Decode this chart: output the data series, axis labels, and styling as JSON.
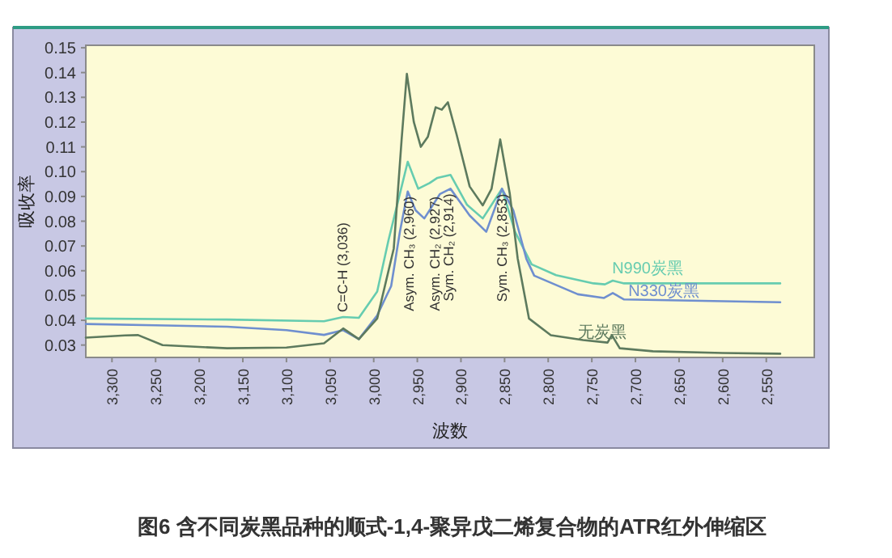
{
  "chart_data": {
    "type": "line",
    "title": "图6  含不同炭黑品种的顺式-1,4-聚异戊二烯复合物的ATR红外伸缩区",
    "xlabel": "波数",
    "ylabel": "吸收率",
    "xlim": [
      3330,
      2495
    ],
    "ylim": [
      0.025,
      0.151
    ],
    "xticks": [
      {
        "value": 3300,
        "label": "3,300"
      },
      {
        "value": 3250,
        "label": "3,250"
      },
      {
        "value": 3200,
        "label": "3,200"
      },
      {
        "value": 3150,
        "label": "3,150"
      },
      {
        "value": 3100,
        "label": "3,100"
      },
      {
        "value": 3050,
        "label": "3,050"
      },
      {
        "value": 3000,
        "label": "3,000"
      },
      {
        "value": 2950,
        "label": "2,950"
      },
      {
        "value": 2900,
        "label": "2,900"
      },
      {
        "value": 2850,
        "label": "2,850"
      },
      {
        "value": 2800,
        "label": "2,800"
      },
      {
        "value": 2750,
        "label": "2,750"
      },
      {
        "value": 2700,
        "label": "2,700"
      },
      {
        "value": 2650,
        "label": "2,650"
      },
      {
        "value": 2600,
        "label": "2,600"
      },
      {
        "value": 2550,
        "label": "2,550"
      }
    ],
    "yticks": [
      0.03,
      0.04,
      0.05,
      0.06,
      0.07,
      0.08,
      0.09,
      {
        "value": 0.1,
        "label": "0.10"
      },
      0.11,
      0.12,
      0.13,
      0.14,
      0.15
    ],
    "grid": false,
    "marker": "none",
    "line_style": "solid",
    "series": [
      {
        "name": "N990炭黑",
        "color": "#66ccb0",
        "x": [
          3330,
          3168,
          3057,
          3035,
          3017,
          2996,
          2983,
          2961,
          2949,
          2936,
          2927,
          2912,
          2893,
          2875,
          2853,
          2838,
          2819,
          2791,
          2748,
          2735,
          2726,
          2713,
          2534
        ],
        "values": [
          0.0407,
          0.0403,
          0.0396,
          0.0413,
          0.041,
          0.0516,
          0.0724,
          0.104,
          0.0931,
          0.0954,
          0.0975,
          0.0987,
          0.0866,
          0.0811,
          0.0931,
          0.0757,
          0.0626,
          0.0582,
          0.0549,
          0.0545,
          0.056,
          0.0549,
          0.0549
        ]
      },
      {
        "name": "N330炭黑",
        "color": "#6f8fcf",
        "x": [
          3330,
          3250,
          3168,
          3100,
          3057,
          3035,
          3017,
          2996,
          2986,
          2980,
          2970,
          2961,
          2952,
          2942,
          2924,
          2912,
          2890,
          2871,
          2853,
          2840,
          2825,
          2816,
          2766,
          2736,
          2726,
          2713,
          2534
        ],
        "values": [
          0.0385,
          0.038,
          0.0374,
          0.036,
          0.0341,
          0.036,
          0.0324,
          0.042,
          0.0494,
          0.0538,
          0.0757,
          0.092,
          0.0844,
          0.0811,
          0.091,
          0.0931,
          0.0823,
          0.0757,
          0.0931,
          0.0844,
          0.0648,
          0.058,
          0.0505,
          0.049,
          0.051,
          0.0484,
          0.0473
        ]
      },
      {
        "name": "无炭黑",
        "color": "#5d7a5e",
        "x": [
          3330,
          3285,
          3270,
          3242,
          3168,
          3100,
          3057,
          3035,
          3017,
          2996,
          2977,
          2968,
          2962,
          2954,
          2946,
          2938,
          2929,
          2922,
          2915,
          2905,
          2890,
          2875,
          2865,
          2855,
          2844,
          2835,
          2822,
          2797,
          2760,
          2732,
          2727,
          2718,
          2680,
          2600,
          2534
        ],
        "values": [
          0.033,
          0.0339,
          0.034,
          0.03,
          0.0287,
          0.029,
          0.0307,
          0.0367,
          0.0324,
          0.0407,
          0.069,
          0.113,
          0.1395,
          0.12,
          0.11,
          0.114,
          0.126,
          0.125,
          0.128,
          0.115,
          0.094,
          0.0864,
          0.093,
          0.113,
          0.091,
          0.065,
          0.0407,
          0.034,
          0.032,
          0.031,
          0.034,
          0.0287,
          0.0275,
          0.0268,
          0.0265
        ]
      }
    ],
    "annotations": [
      {
        "text": "C=C-H (3,036)",
        "x": 3036,
        "y": 0.0413
      },
      {
        "text": "Asym. CH₃ (2,960)",
        "x": 2960,
        "y": 0.092
      },
      {
        "text": "Asym. CH₂ (2,927)",
        "x": 2930,
        "y": 0.092
      },
      {
        "text": "Sym. CH₂ (2,914)",
        "x": 2914,
        "y": 0.0931
      },
      {
        "text": "Sym. CH₃ (2,853)",
        "x": 2853,
        "y": 0.093
      }
    ]
  }
}
